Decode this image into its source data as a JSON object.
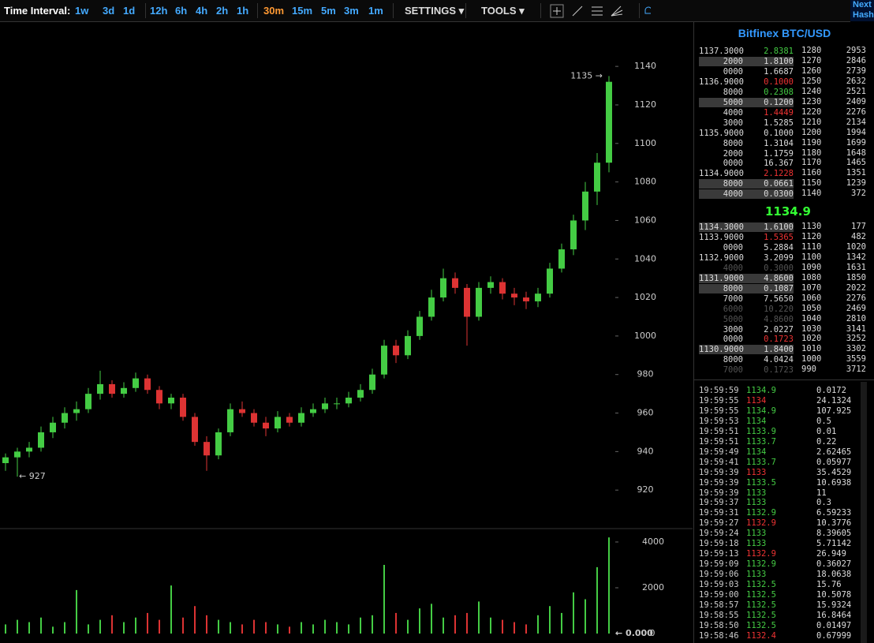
{
  "toolbar": {
    "label": "Time Interval:",
    "intervals": [
      "1w",
      "3d",
      "1d",
      "12h",
      "6h",
      "4h",
      "2h",
      "1h",
      "30m",
      "15m",
      "5m",
      "3m",
      "1m"
    ],
    "active_interval": "30m",
    "settings": "SETTINGS",
    "tools": "TOOLS"
  },
  "corner": [
    "Next",
    "Hash"
  ],
  "chart_data": {
    "type": "candlestick",
    "open": [
      934,
      937,
      940,
      942,
      950,
      955,
      960,
      962,
      970,
      975,
      970,
      973,
      978,
      972,
      965,
      968,
      958,
      945,
      938,
      950,
      962,
      960,
      955,
      952,
      958,
      955,
      960,
      962,
      965,
      965,
      968,
      972,
      980,
      995,
      990,
      1000,
      1010,
      1020,
      1030,
      1025,
      1010,
      1025,
      1028,
      1022,
      1020,
      1018,
      1022,
      1035,
      1045,
      1060,
      1075,
      1090
    ],
    "high": [
      939,
      942,
      945,
      953,
      958,
      963,
      966,
      973,
      982,
      977,
      976,
      981,
      980,
      974,
      970,
      970,
      960,
      948,
      952,
      965,
      966,
      962,
      958,
      961,
      960,
      963,
      965,
      968,
      968,
      971,
      975,
      983,
      998,
      998,
      1003,
      1013,
      1024,
      1035,
      1033,
      1027,
      1028,
      1031,
      1030,
      1025,
      1023,
      1025,
      1038,
      1048,
      1063,
      1080,
      1095,
      1135
    ],
    "low": [
      930,
      927,
      937,
      940,
      947,
      952,
      956,
      960,
      967,
      968,
      968,
      971,
      970,
      962,
      962,
      956,
      943,
      930,
      936,
      948,
      958,
      953,
      948,
      950,
      953,
      953,
      958,
      960,
      962,
      963,
      966,
      970,
      978,
      986,
      988,
      998,
      1008,
      1018,
      1022,
      995,
      1008,
      1022,
      1019,
      1016,
      1014,
      1015,
      1020,
      1033,
      1042,
      1055,
      1068,
      1085
    ],
    "close": [
      937,
      940,
      942,
      950,
      955,
      960,
      962,
      970,
      975,
      970,
      973,
      978,
      972,
      965,
      968,
      958,
      945,
      938,
      950,
      962,
      960,
      955,
      952,
      958,
      955,
      960,
      962,
      965,
      965,
      968,
      972,
      980,
      995,
      990,
      1000,
      1010,
      1020,
      1030,
      1025,
      1010,
      1025,
      1028,
      1022,
      1020,
      1018,
      1022,
      1035,
      1045,
      1060,
      1075,
      1090,
      1132
    ],
    "up_color": "#44cc44",
    "down_color": "#dd3333",
    "ylim": [
      900,
      1163
    ],
    "yticks": [
      920,
      940,
      960,
      980,
      1000,
      1020,
      1040,
      1060,
      1080,
      1100,
      1120,
      1140
    ],
    "annotations": [
      {
        "text": "1135 →",
        "value": 1135
      },
      {
        "text": "← 927",
        "value": 927
      }
    ],
    "volume": {
      "values": [
        400,
        600,
        500,
        700,
        300,
        500,
        1900,
        400,
        600,
        800,
        500,
        700,
        900,
        600,
        2100,
        700,
        1200,
        800,
        600,
        500,
        400,
        600,
        500,
        400,
        300,
        500,
        400,
        600,
        500,
        400,
        700,
        800,
        3000,
        900,
        600,
        1100,
        1300,
        700,
        800,
        900,
        1400,
        700,
        600,
        500,
        400,
        800,
        1200,
        900,
        1800,
        1500,
        2900,
        4200
      ],
      "ylim": [
        -240,
        4585
      ],
      "yticks": [
        0,
        2000,
        4000
      ],
      "current_label": "← 0.000"
    }
  },
  "order_book": {
    "title": "Bitfinex BTC/USD",
    "asks": [
      {
        "price": "1137.3000",
        "amount": "2.8381",
        "color": "#44cc44"
      },
      {
        "price": "2000",
        "amount": "1.8100",
        "style": "hl"
      },
      {
        "price": "0000",
        "amount": "1.6687"
      },
      {
        "price": "1136.9000",
        "amount": "0.1000",
        "color": "#ee3333"
      },
      {
        "price": "8000",
        "amount": "0.2308",
        "color": "#44cc44"
      },
      {
        "price": "5000",
        "amount": "0.1200",
        "style": "hl"
      },
      {
        "price": "4000",
        "amount": "1.4449",
        "color": "#ee3333"
      },
      {
        "price": "3000",
        "amount": "1.5285"
      },
      {
        "price": "1135.9000",
        "amount": "0.1000"
      },
      {
        "price": "8000",
        "amount": "1.3104"
      },
      {
        "price": "2000",
        "amount": "1.1759"
      },
      {
        "price": "0000",
        "amount": "16.367"
      },
      {
        "price": "1134.9000",
        "amount": "2.1228",
        "color": "#ee3333"
      },
      {
        "price": "8000",
        "amount": "0.0661",
        "style": "hl"
      },
      {
        "price": "4000",
        "amount": "0.0300",
        "style": "hl"
      }
    ],
    "current_price": "1134.9",
    "bids": [
      {
        "price": "1134.3000",
        "amount": "1.6100",
        "style": "hl"
      },
      {
        "price": "1133.9000",
        "amount": "1.5365",
        "color": "#ee3333"
      },
      {
        "price": "0000",
        "amount": "5.2884"
      },
      {
        "price": "1132.9000",
        "amount": "3.2099"
      },
      {
        "price": "4000",
        "amount": "0.3000",
        "style": "dim"
      },
      {
        "price": "1131.9000",
        "amount": "4.8600",
        "style": "hl"
      },
      {
        "price": "8000",
        "amount": "0.1087",
        "style": "hl"
      },
      {
        "price": "7000",
        "amount": "7.5650"
      },
      {
        "price": "6000",
        "amount": "10.220",
        "style": "dim"
      },
      {
        "price": "5000",
        "amount": "4.8600",
        "style": "dim"
      },
      {
        "price": "3000",
        "amount": "2.0227"
      },
      {
        "price": "0000",
        "amount": "0.1723",
        "color": "#ee3333"
      },
      {
        "price": "1130.9000",
        "amount": "1.8400",
        "style": "hl"
      },
      {
        "price": "8000",
        "amount": "4.0424"
      },
      {
        "price": "7000",
        "amount": "0.1723",
        "style": "dim"
      }
    ]
  },
  "depth": {
    "asks": [
      [
        1280,
        2953
      ],
      [
        1270,
        2846
      ],
      [
        1260,
        2739
      ],
      [
        1250,
        2632
      ],
      [
        1240,
        2521
      ],
      [
        1230,
        2409
      ],
      [
        1220,
        2276
      ],
      [
        1210,
        2134
      ],
      [
        1200,
        1994
      ],
      [
        1190,
        1699
      ],
      [
        1180,
        1648
      ],
      [
        1170,
        1465
      ],
      [
        1160,
        1351
      ],
      [
        1150,
        1239
      ],
      [
        1140,
        372
      ]
    ],
    "bids": [
      [
        1130,
        177
      ],
      [
        1120,
        482
      ],
      [
        1110,
        1020
      ],
      [
        1100,
        1342
      ],
      [
        1090,
        1631
      ],
      [
        1080,
        1850
      ],
      [
        1070,
        2022
      ],
      [
        1060,
        2276
      ],
      [
        1050,
        2469
      ],
      [
        1040,
        2810
      ],
      [
        1030,
        3141
      ],
      [
        1020,
        3252
      ],
      [
        1010,
        3302
      ],
      [
        1000,
        3559
      ],
      [
        990,
        3712
      ]
    ]
  },
  "trades": [
    {
      "time": "19:59:59",
      "price": 1134.9,
      "amount": 0.0172,
      "side": "buy"
    },
    {
      "time": "19:59:55",
      "price": 1134,
      "amount": 24.1324,
      "side": "sell"
    },
    {
      "time": "19:59:55",
      "price": 1134.9,
      "amount": 107.925,
      "side": "buy"
    },
    {
      "time": "19:59:53",
      "price": 1134,
      "amount": 0.5,
      "side": "buy"
    },
    {
      "time": "19:59:51",
      "price": 1133.9,
      "amount": 0.01,
      "side": "buy"
    },
    {
      "time": "19:59:51",
      "price": 1133.7,
      "amount": 0.22,
      "side": "buy"
    },
    {
      "time": "19:59:49",
      "price": 1134,
      "amount": 2.62465,
      "side": "buy"
    },
    {
      "time": "19:59:41",
      "price": 1133.7,
      "amount": 0.05977,
      "side": "buy"
    },
    {
      "time": "19:59:39",
      "price": 1133,
      "amount": 35.4529,
      "side": "sell"
    },
    {
      "time": "19:59:39",
      "price": 1133.5,
      "amount": 10.6938,
      "side": "buy"
    },
    {
      "time": "19:59:39",
      "price": 1133,
      "amount": 11,
      "side": "buy"
    },
    {
      "time": "19:59:37",
      "price": 1133,
      "amount": 0.3,
      "side": "buy"
    },
    {
      "time": "19:59:31",
      "price": 1132.9,
      "amount": 6.59233,
      "side": "buy"
    },
    {
      "time": "19:59:27",
      "price": 1132.9,
      "amount": 10.3776,
      "side": "sell"
    },
    {
      "time": "19:59:24",
      "price": 1133,
      "amount": 8.39605,
      "side": "buy"
    },
    {
      "time": "19:59:18",
      "price": 1133,
      "amount": 5.71142,
      "side": "buy"
    },
    {
      "time": "19:59:13",
      "price": 1132.9,
      "amount": 26.949,
      "side": "sell"
    },
    {
      "time": "19:59:09",
      "price": 1132.9,
      "amount": 0.36027,
      "side": "buy"
    },
    {
      "time": "19:59:06",
      "price": 1133,
      "amount": 18.0638,
      "side": "buy"
    },
    {
      "time": "19:59:03",
      "price": 1132.5,
      "amount": 15.76,
      "side": "buy"
    },
    {
      "time": "19:59:00",
      "price": 1132.5,
      "amount": 10.5078,
      "side": "buy"
    },
    {
      "time": "19:58:57",
      "price": 1132.5,
      "amount": 15.9324,
      "side": "buy"
    },
    {
      "time": "19:58:55",
      "price": 1132.5,
      "amount": 16.8464,
      "side": "buy"
    },
    {
      "time": "19:58:50",
      "price": 1132.5,
      "amount": 0.01497,
      "side": "buy"
    },
    {
      "time": "19:58:46",
      "price": 1132.4,
      "amount": 0.67999,
      "side": "sell"
    }
  ]
}
